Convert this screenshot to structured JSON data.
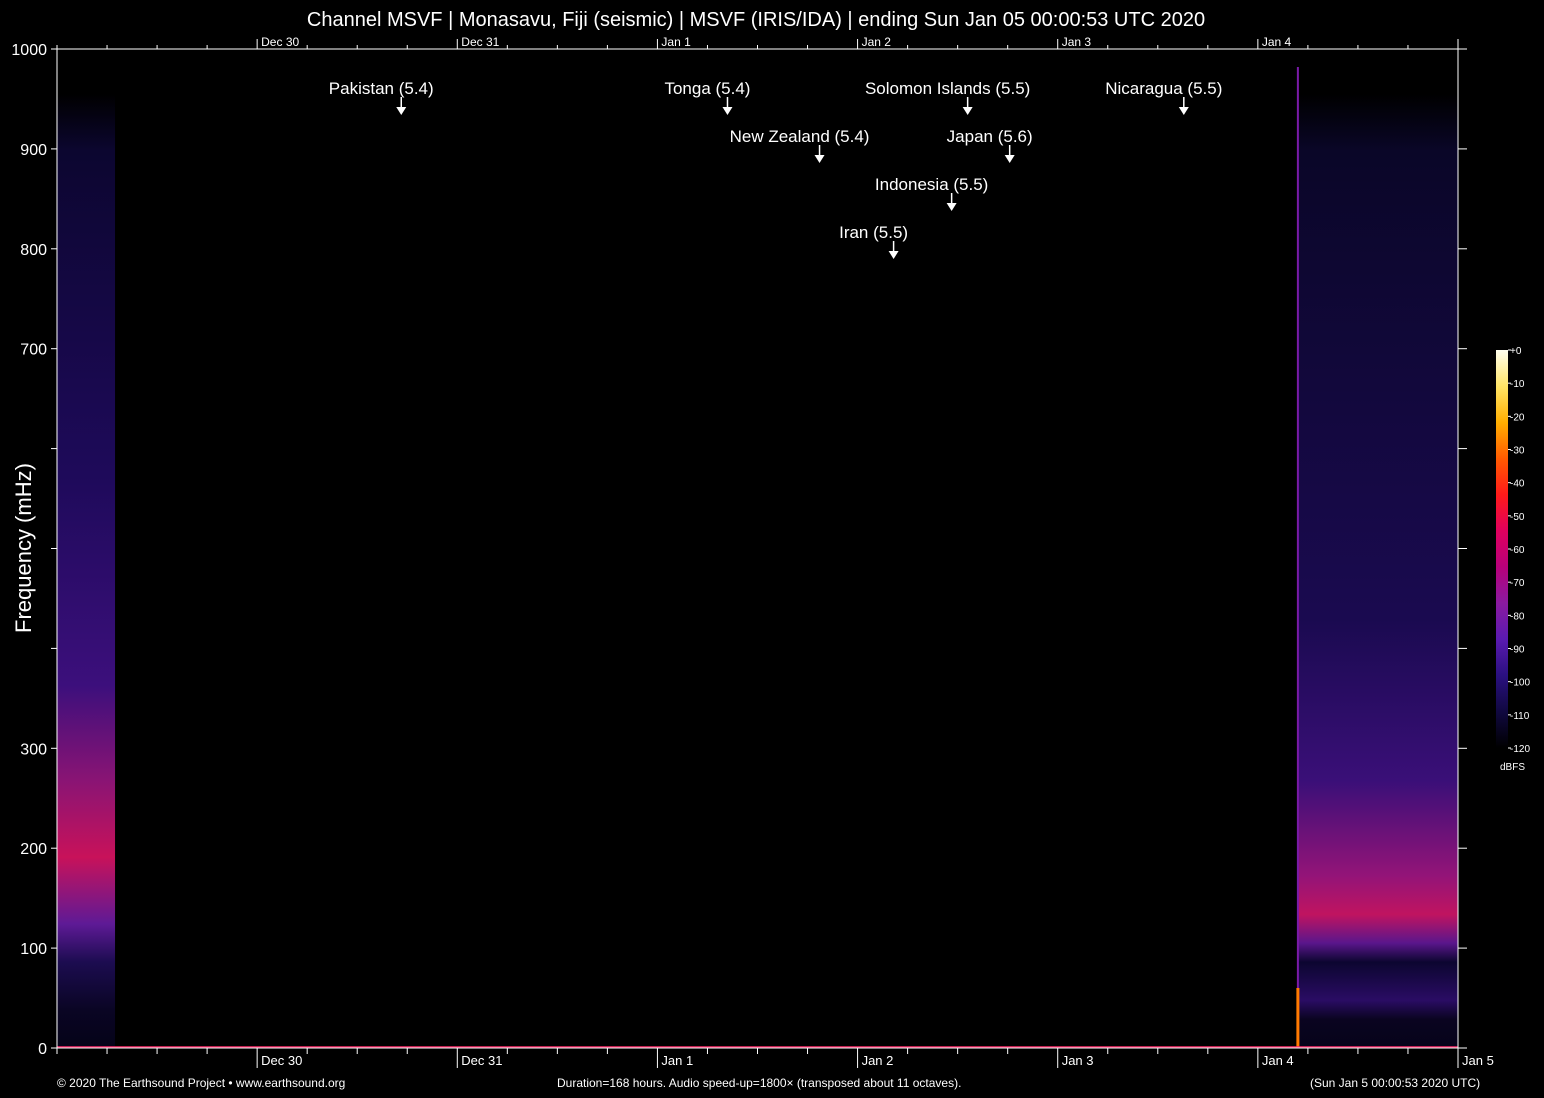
{
  "title": "Channel MSVF | Monasavu, Fiji (seismic) | MSVF (IRIS/IDA) | ending Sun Jan 05 00:00:53 UTC 2020",
  "footer": {
    "left": "© 2020 The Earthsound Project • www.earthsound.org",
    "center": "Duration=168 hours. Audio speed-up=1800× (transposed about 11 octaves).",
    "right": "(Sun Jan  5 00:00:53 2020 UTC)"
  },
  "colors": {
    "background": "#000000",
    "text": "#ffffff",
    "axis": "#ffffff"
  },
  "chart_data": {
    "type": "heatmap",
    "ylabel": "Frequency (mHz)",
    "ylim": [
      0,
      1000
    ],
    "y_ticks": [
      0,
      100,
      200,
      300,
      400,
      500,
      600,
      700,
      800,
      900,
      1000
    ],
    "y_tick_labels": [
      "0",
      "100",
      "200",
      "300",
      "",
      "",
      "",
      "700",
      "800",
      "900",
      "1000"
    ],
    "xlim_days": [
      0,
      7
    ],
    "x_ticks": [
      {
        "label": "Dec 30",
        "day": 1
      },
      {
        "label": "Dec 31",
        "day": 2
      },
      {
        "label": "Jan  1",
        "day": 3
      },
      {
        "label": "Jan  2",
        "day": 4
      },
      {
        "label": "Jan  3",
        "day": 5
      },
      {
        "label": "Jan  4",
        "day": 6
      },
      {
        "label": "Jan  5",
        "day": 7
      }
    ],
    "data_segments": [
      {
        "start_day": 0.0,
        "end_day": 0.29,
        "band_peak_mHz": 180
      },
      {
        "start_day": 6.2,
        "end_day": 7.0,
        "band_peak_mHz": 140
      }
    ],
    "spike_day": 6.2,
    "events": [
      {
        "label": "Pakistan (5.4)",
        "day": 1.72
      },
      {
        "label": "Solomon Islands (5.5)",
        "day": 4.55
      },
      {
        "label": "Nicaragua (5.5)",
        "day": 5.63
      },
      {
        "label": "New Zealand (5.4)",
        "day": 3.81
      },
      {
        "label": "Japan (5.6)",
        "day": 4.76
      },
      {
        "label": "Tonga (5.4)",
        "day": 3.35
      },
      {
        "label": "Indonesia (5.5)",
        "day": 4.47
      },
      {
        "label": "Iran (5.5)",
        "day": 4.18
      }
    ],
    "colorbar": {
      "unit": "dBFS",
      "ticks": [
        "+0",
        "-10",
        "-20",
        "-30",
        "-40",
        "-50",
        "-60",
        "-70",
        "-80",
        "-90",
        "-100",
        "-110",
        "-120"
      ],
      "range": [
        0,
        -120
      ],
      "stops": [
        "#fffff0",
        "#ffe566",
        "#ffae00",
        "#ff5a00",
        "#ff1a1a",
        "#e0005e",
        "#b8007a",
        "#8a1aa0",
        "#5a1ab0",
        "#2a1080",
        "#100840",
        "#000000"
      ]
    }
  }
}
